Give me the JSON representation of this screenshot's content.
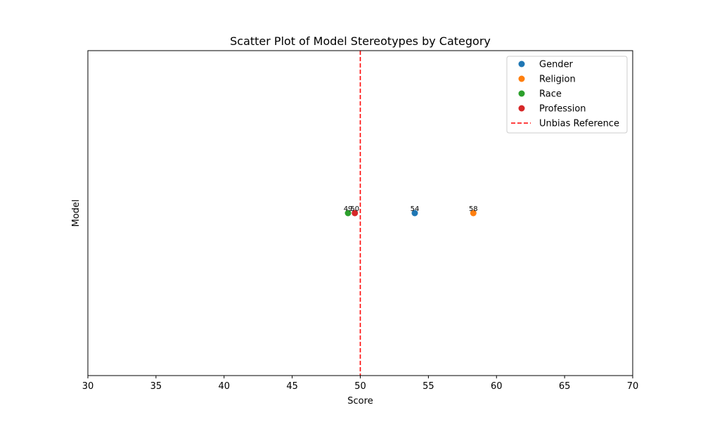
{
  "chart_data": {
    "type": "scatter",
    "title": "Scatter Plot of Model Stereotypes by Category",
    "xlabel": "Score",
    "ylabel": "Model",
    "xlim": [
      30,
      70
    ],
    "xticks": [
      "30",
      "35",
      "40",
      "45",
      "50",
      "55",
      "60",
      "65",
      "70"
    ],
    "grid": false,
    "legend_position": "top-right",
    "series": [
      {
        "name": "Gender",
        "color": "#1f77b4",
        "x": 54.0,
        "label": "54"
      },
      {
        "name": "Religion",
        "color": "#ff7f0e",
        "x": 58.3,
        "label": "58"
      },
      {
        "name": "Race",
        "color": "#2ca02c",
        "x": 49.1,
        "label": "49"
      },
      {
        "name": "Profession",
        "color": "#d62728",
        "x": 49.6,
        "label": "50"
      }
    ],
    "reference_line": {
      "name": "Unbias Reference",
      "x": 50,
      "color": "#ff0000",
      "style": "dashed"
    }
  }
}
